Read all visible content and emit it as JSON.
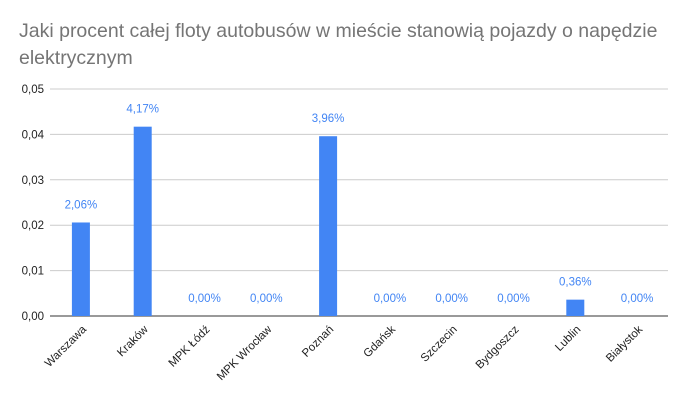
{
  "chart_data": {
    "type": "bar",
    "title": "Jaki procent całej floty autobusów w mieście stanowią pojazdy o napędzie elektrycznym",
    "categories": [
      "Warszawa",
      "Kraków",
      "MPK Łódź",
      "MPK Wrocław",
      "Poznań",
      "Gdańsk",
      "Szczecin",
      "Bydgoszcz",
      "Lublin",
      "Białystok"
    ],
    "values": [
      0.0206,
      0.0417,
      0.0,
      0.0,
      0.0396,
      0.0,
      0.0,
      0.0,
      0.0036,
      0.0
    ],
    "data_labels": [
      "2,06%",
      "4,17%",
      "0,00%",
      "0,00%",
      "3,96%",
      "0,00%",
      "0,00%",
      "0,00%",
      "0,36%",
      "0,00%"
    ],
    "y_ticks": [
      "0,00",
      "0,01",
      "0,02",
      "0,03",
      "0,04",
      "0,05"
    ],
    "ylim": [
      0,
      0.05
    ],
    "grid": true,
    "bar_color": "#4285f4",
    "label_color": "#4285f4"
  }
}
